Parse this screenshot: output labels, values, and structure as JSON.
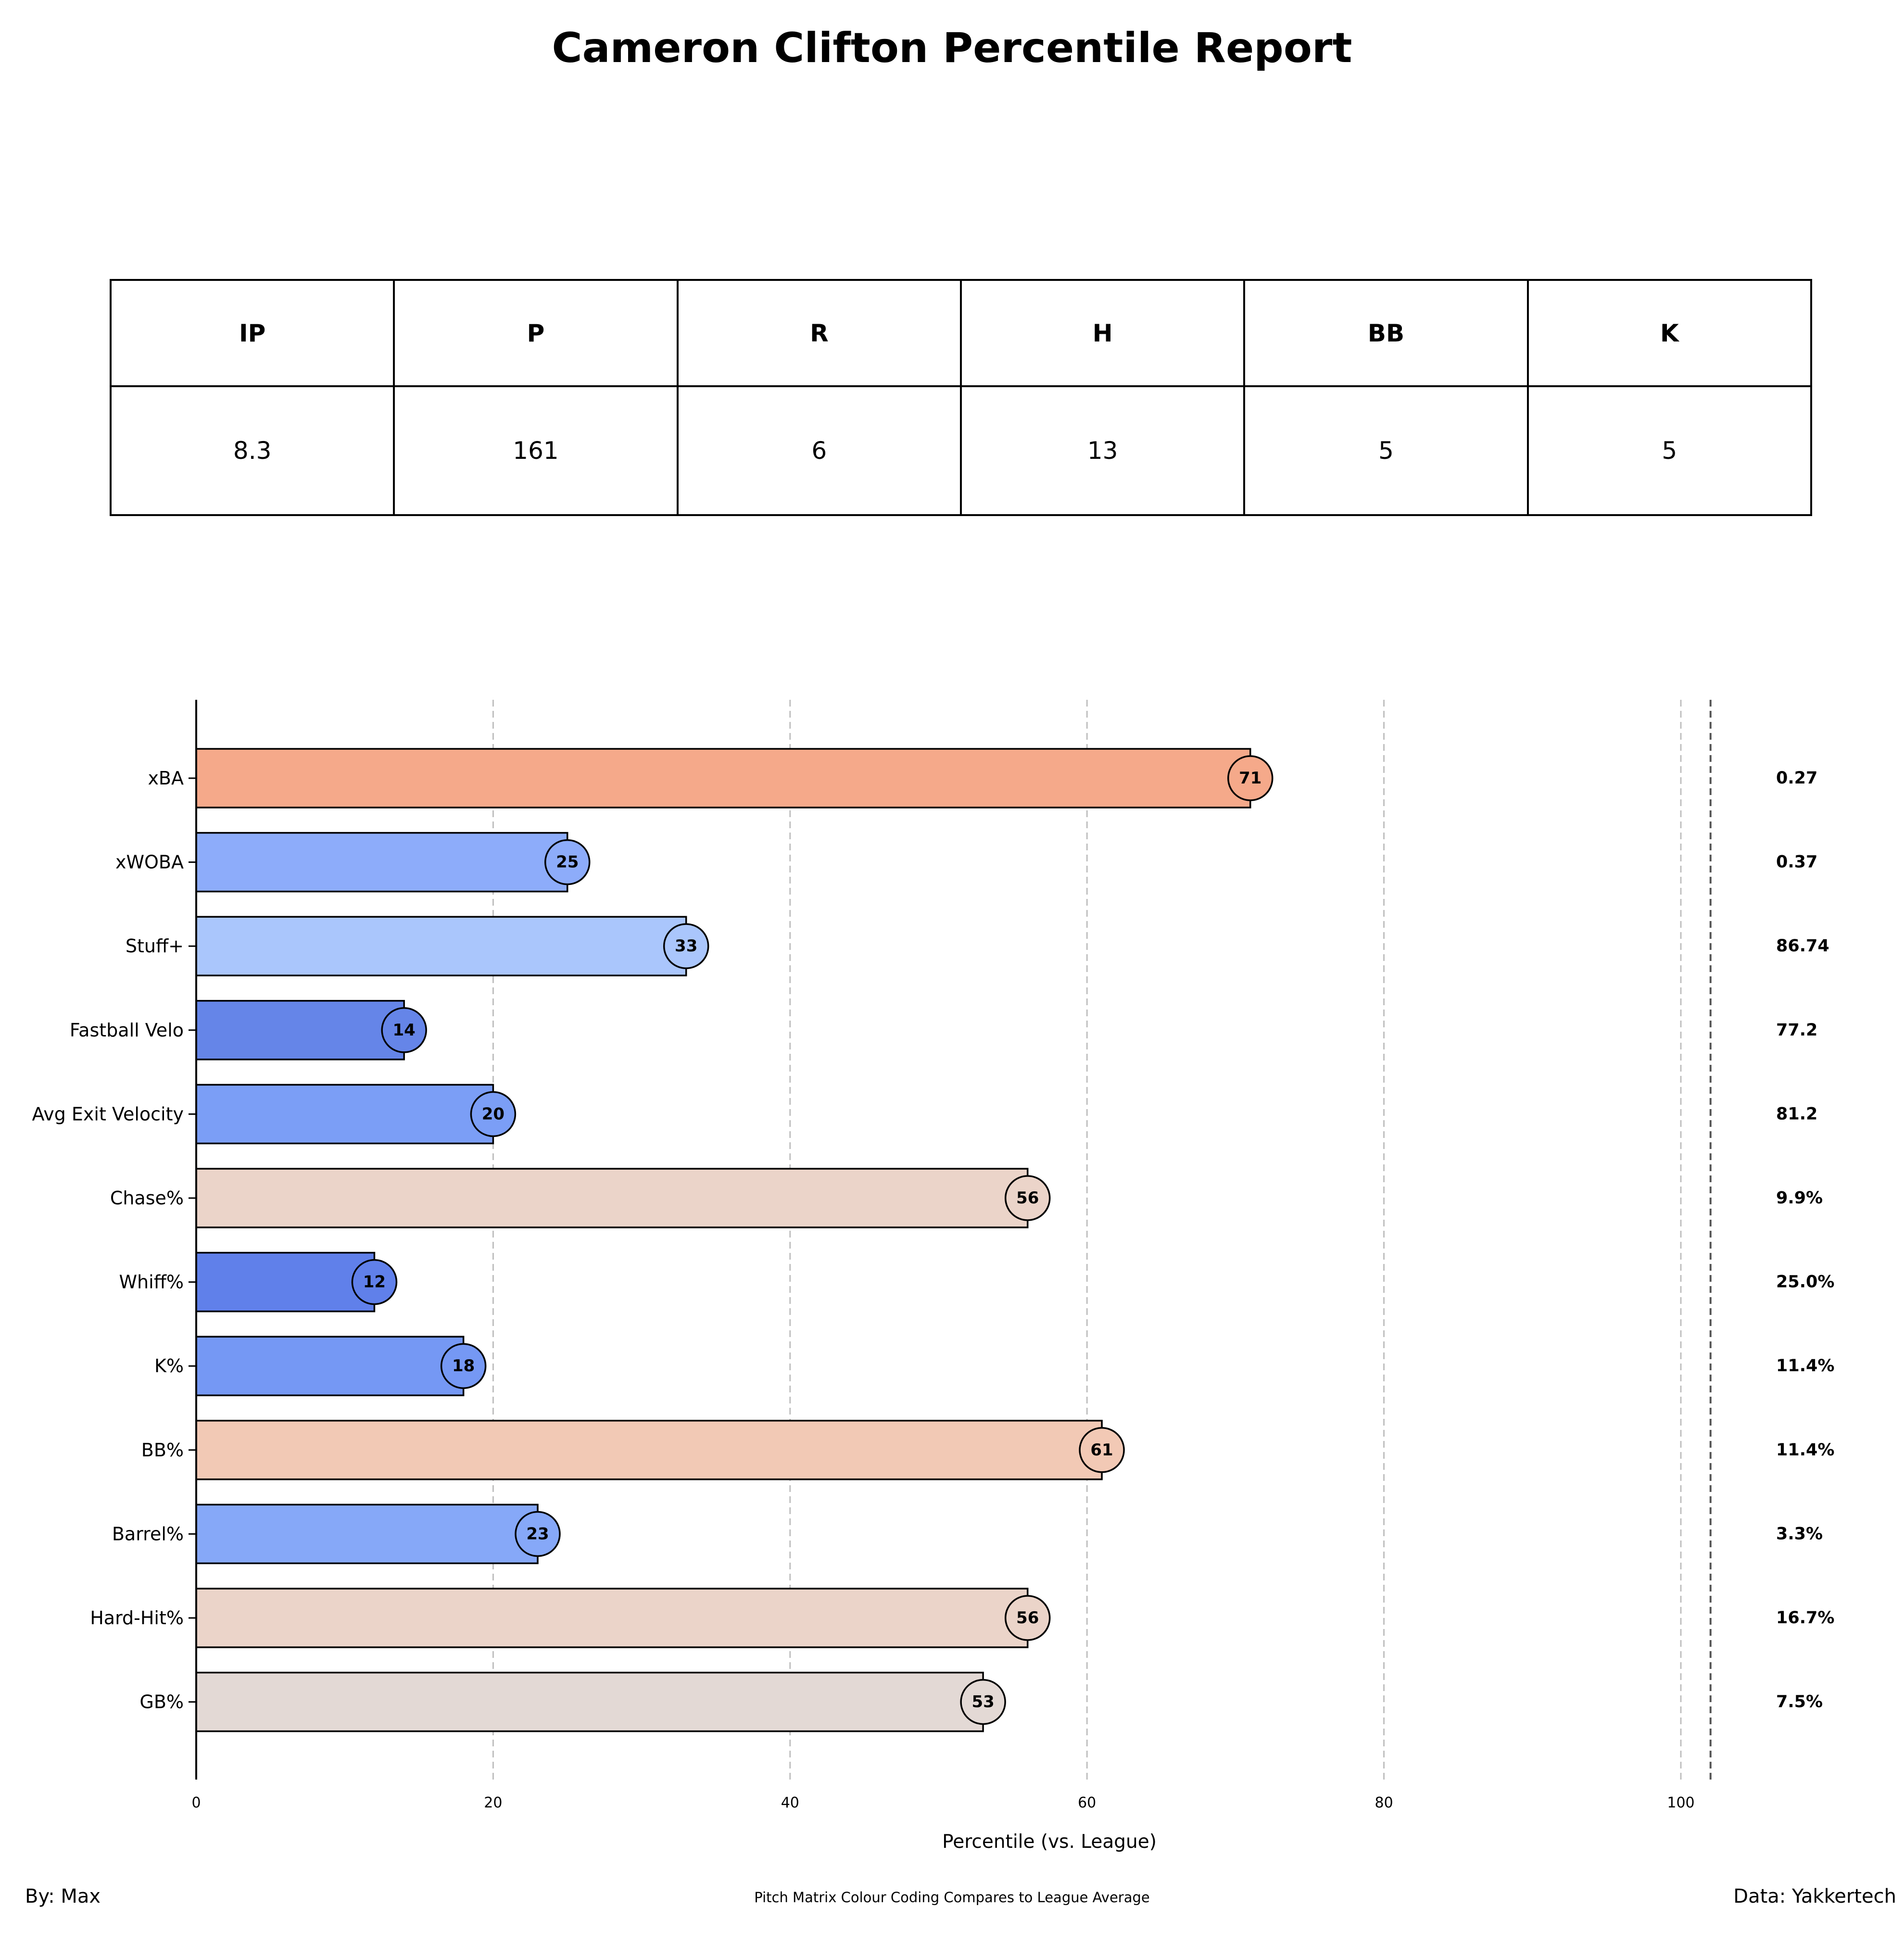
{
  "title": "Cameron Clifton Percentile Report",
  "stats_table": {
    "headers": [
      "IP",
      "P",
      "R",
      "H",
      "BB",
      "K"
    ],
    "values": [
      "8.3",
      "161",
      "6",
      "13",
      "5",
      "5"
    ]
  },
  "chart_data": {
    "type": "bar",
    "orientation": "horizontal",
    "xlabel": "Percentile (vs. League)",
    "xlim": [
      0,
      102
    ],
    "xticks": [
      0,
      20,
      40,
      60,
      80,
      100
    ],
    "grid": "vertical dashed",
    "categories": [
      "xBA",
      "xWOBA",
      "Stuff+",
      "Fastball Velo",
      "Avg Exit Velocity",
      "Chase%",
      "Whiff%",
      "K%",
      "BB%",
      "Barrel%",
      "Hard-Hit%",
      "GB%"
    ],
    "percentiles": [
      71,
      25,
      33,
      14,
      20,
      56,
      12,
      18,
      61,
      23,
      56,
      53
    ],
    "stat_values": [
      "0.27",
      "0.37",
      "86.74",
      "77.2",
      "81.2",
      "9.9%",
      "25.0%",
      "11.4%",
      "11.4%",
      "3.3%",
      "16.7%",
      "7.5%"
    ],
    "colors": [
      "#f5a98a",
      "#8dacfa",
      "#aac6fc",
      "#6585e8",
      "#7b9ef6",
      "#ebd4c9",
      "#6080ea",
      "#7598f4",
      "#f2c9b5",
      "#86a8f8",
      "#ebd4c9",
      "#e3d9d5"
    ]
  },
  "footer": {
    "left": "By: Max",
    "center": "Pitch Matrix Colour Coding Compares to League Average",
    "right": "Data: Yakkertech"
  }
}
